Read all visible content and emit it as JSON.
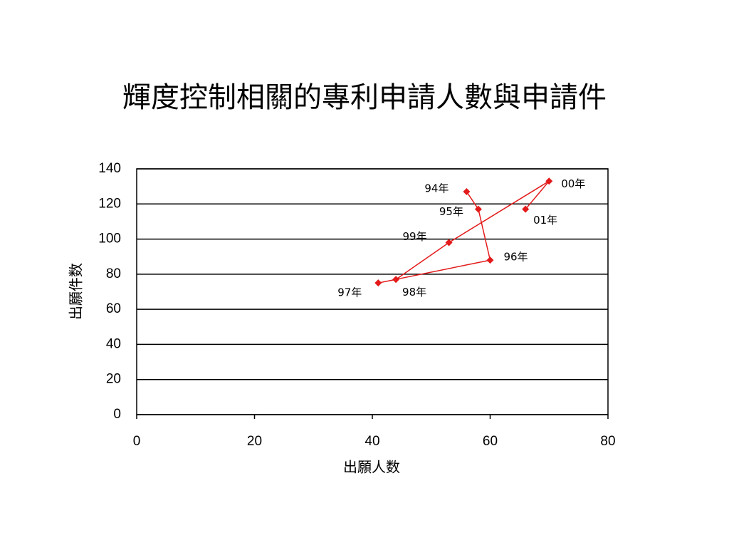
{
  "chart_data": {
    "type": "scatter",
    "title": "輝度控制相關的專利申請人數與申請件",
    "x_label": "出願人数",
    "y_label": "出願件数",
    "series": [
      {
        "name": "出願",
        "color": "#e31b1b",
        "x": [
          56,
          58,
          60,
          41,
          44,
          53,
          70,
          66
        ],
        "values": [
          127,
          117,
          88,
          75,
          77,
          98,
          133,
          117
        ],
        "labels": [
          "94年",
          "95年",
          "96年",
          "97年",
          "98年",
          "99年",
          "00年",
          "01年"
        ]
      }
    ],
    "xlim": [
      0,
      80
    ],
    "xticks": [
      0,
      20,
      40,
      60,
      80
    ],
    "ylim": [
      0,
      140
    ],
    "yticks": [
      0,
      20,
      40,
      60,
      80,
      100,
      120,
      140
    ],
    "grid": true
  }
}
